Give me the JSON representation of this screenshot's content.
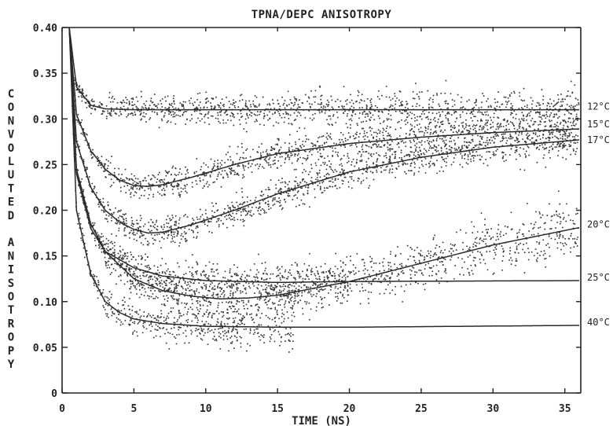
{
  "chart_data": {
    "type": "scatter",
    "title": "TPNA/DEPC ANISOTROPY",
    "xlabel": "TIME (NS)",
    "ylabel": "CONVOLUTED ANISOTROPY",
    "xlim": [
      0,
      36
    ],
    "ylim": [
      0,
      0.4
    ],
    "x_ticks": [
      "0",
      "5",
      "10",
      "15",
      "20",
      "25",
      "30",
      "35"
    ],
    "y_ticks": [
      "0",
      "0.05",
      "0.10",
      "0.15",
      "0.20",
      "0.25",
      "0.30",
      "0.35",
      "0.40"
    ],
    "grid": false,
    "series": [
      {
        "name": "12°C",
        "fit": [
          [
            0.5,
            0.4
          ],
          [
            1,
            0.335
          ],
          [
            2,
            0.315
          ],
          [
            3,
            0.311
          ],
          [
            5,
            0.31
          ],
          [
            10,
            0.31
          ],
          [
            20,
            0.31
          ],
          [
            36,
            0.31
          ]
        ],
        "data_range": [
          0,
          36
        ],
        "scatter": 0.012
      },
      {
        "name": "15°C",
        "fit": [
          [
            0.5,
            0.4
          ],
          [
            1,
            0.305
          ],
          [
            2,
            0.265
          ],
          [
            3,
            0.245
          ],
          [
            4,
            0.233
          ],
          [
            5,
            0.227
          ],
          [
            6,
            0.226
          ],
          [
            7,
            0.228
          ],
          [
            9,
            0.236
          ],
          [
            12,
            0.25
          ],
          [
            15,
            0.262
          ],
          [
            20,
            0.273
          ],
          [
            25,
            0.28
          ],
          [
            30,
            0.285
          ],
          [
            36,
            0.289
          ]
        ],
        "data_range": [
          0,
          36
        ],
        "scatter": 0.012
      },
      {
        "name": "17°C",
        "fit": [
          [
            0.5,
            0.4
          ],
          [
            1,
            0.275
          ],
          [
            2,
            0.225
          ],
          [
            3,
            0.2
          ],
          [
            4,
            0.187
          ],
          [
            5,
            0.179
          ],
          [
            6,
            0.175
          ],
          [
            7,
            0.176
          ],
          [
            9,
            0.184
          ],
          [
            12,
            0.2
          ],
          [
            15,
            0.218
          ],
          [
            20,
            0.242
          ],
          [
            25,
            0.258
          ],
          [
            30,
            0.269
          ],
          [
            36,
            0.277
          ]
        ],
        "data_range": [
          0,
          36
        ],
        "scatter": 0.012
      },
      {
        "name": "20°C",
        "fit": [
          [
            0.5,
            0.4
          ],
          [
            1,
            0.245
          ],
          [
            2,
            0.185
          ],
          [
            3,
            0.155
          ],
          [
            5,
            0.125
          ],
          [
            7,
            0.112
          ],
          [
            9,
            0.106
          ],
          [
            11,
            0.103
          ],
          [
            13,
            0.104
          ],
          [
            15,
            0.107
          ],
          [
            20,
            0.122
          ],
          [
            25,
            0.142
          ],
          [
            30,
            0.162
          ],
          [
            36,
            0.181
          ]
        ],
        "data_range": [
          0,
          36
        ],
        "scatter": 0.016
      },
      {
        "name": "25°C",
        "fit": [
          [
            0.5,
            0.4
          ],
          [
            1,
            0.24
          ],
          [
            2,
            0.18
          ],
          [
            3,
            0.155
          ],
          [
            5,
            0.137
          ],
          [
            7,
            0.128
          ],
          [
            10,
            0.123
          ],
          [
            15,
            0.121
          ],
          [
            20,
            0.122
          ],
          [
            36,
            0.123
          ]
        ],
        "data_range": [
          0,
          20
        ],
        "scatter": 0.015
      },
      {
        "name": "40°C",
        "fit": [
          [
            0.5,
            0.4
          ],
          [
            1,
            0.2
          ],
          [
            2,
            0.13
          ],
          [
            3,
            0.1
          ],
          [
            4,
            0.088
          ],
          [
            5,
            0.081
          ],
          [
            7,
            0.076
          ],
          [
            10,
            0.073
          ],
          [
            15,
            0.072
          ],
          [
            20,
            0.072
          ],
          [
            36,
            0.074
          ]
        ],
        "data_range": [
          0,
          16.2
        ],
        "scatter": 0.016
      }
    ]
  }
}
